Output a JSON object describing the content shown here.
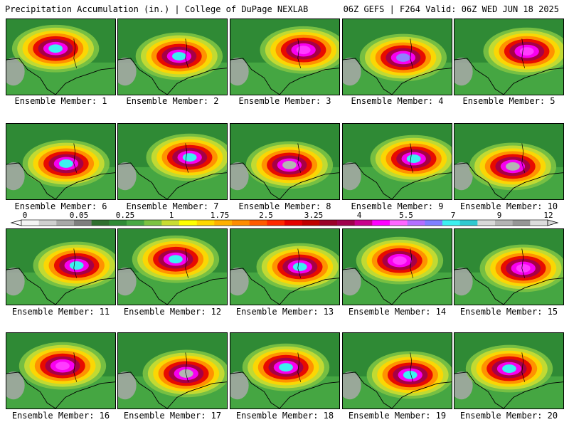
{
  "header": {
    "left": "Precipitation Accumulation (in.) | College of DuPage NEXLAB",
    "right": "06Z GEFS | F264 Valid: 06Z WED JUN 18 2025"
  },
  "members": [
    {
      "caption": "Ensemble Member: 1",
      "max_color": "#3df0f0"
    },
    {
      "caption": "Ensemble Member: 2",
      "max_color": "#3df0f0"
    },
    {
      "caption": "Ensemble Member: 3",
      "max_color": "#ff3cff"
    },
    {
      "caption": "Ensemble Member: 4",
      "max_color": "#8f82ff"
    },
    {
      "caption": "Ensemble Member: 5",
      "max_color": "#ff3cff"
    },
    {
      "caption": "Ensemble Member: 6",
      "max_color": "#3df0f0"
    },
    {
      "caption": "Ensemble Member: 7",
      "max_color": "#3df0f0"
    },
    {
      "caption": "Ensemble Member: 8",
      "max_color": "#b4b4b4"
    },
    {
      "caption": "Ensemble Member: 9",
      "max_color": "#3df0f0"
    },
    {
      "caption": "Ensemble Member: 10",
      "max_color": "#b4b4b4"
    },
    {
      "caption": "Ensemble Member: 11",
      "max_color": "#3df0f0"
    },
    {
      "caption": "Ensemble Member: 12",
      "max_color": "#3df0f0"
    },
    {
      "caption": "Ensemble Member: 13",
      "max_color": "#3df0f0"
    },
    {
      "caption": "Ensemble Member: 14",
      "max_color": "#ff3cff"
    },
    {
      "caption": "Ensemble Member: 15",
      "max_color": "#ff3cff"
    },
    {
      "caption": "Ensemble Member: 16",
      "max_color": "#ff3cff"
    },
    {
      "caption": "Ensemble Member: 17",
      "max_color": "#b4b4b4"
    },
    {
      "caption": "Ensemble Member: 18",
      "max_color": "#3df0f0"
    },
    {
      "caption": "Ensemble Member: 19",
      "max_color": "#3df0f0"
    },
    {
      "caption": "Ensemble Member: 20",
      "max_color": "#3df0f0"
    }
  ],
  "colorbar": {
    "labels": [
      "0",
      "0.05",
      "0.25",
      "1",
      "1.75",
      "2.5",
      "3.25",
      "4",
      "5.5",
      "7",
      "9",
      "12"
    ],
    "colors": [
      "#f4f4f4",
      "#cfcfcf",
      "#a8a8a8",
      "#7e7e7e",
      "#2f6f2f",
      "#2f8a35",
      "#48a844",
      "#7cc243",
      "#c8dc32",
      "#ffff00",
      "#ffd700",
      "#ffb000",
      "#ff8c00",
      "#ff5a00",
      "#ff2800",
      "#e60000",
      "#c00000",
      "#9a0028",
      "#a0004c",
      "#c8008c",
      "#ff00ff",
      "#ff66ff",
      "#b46eff",
      "#7f7fff",
      "#3df0f0",
      "#30c8d0",
      "#d8d8d8",
      "#b4b4b4",
      "#969696",
      "#dcdcdc"
    ]
  }
}
